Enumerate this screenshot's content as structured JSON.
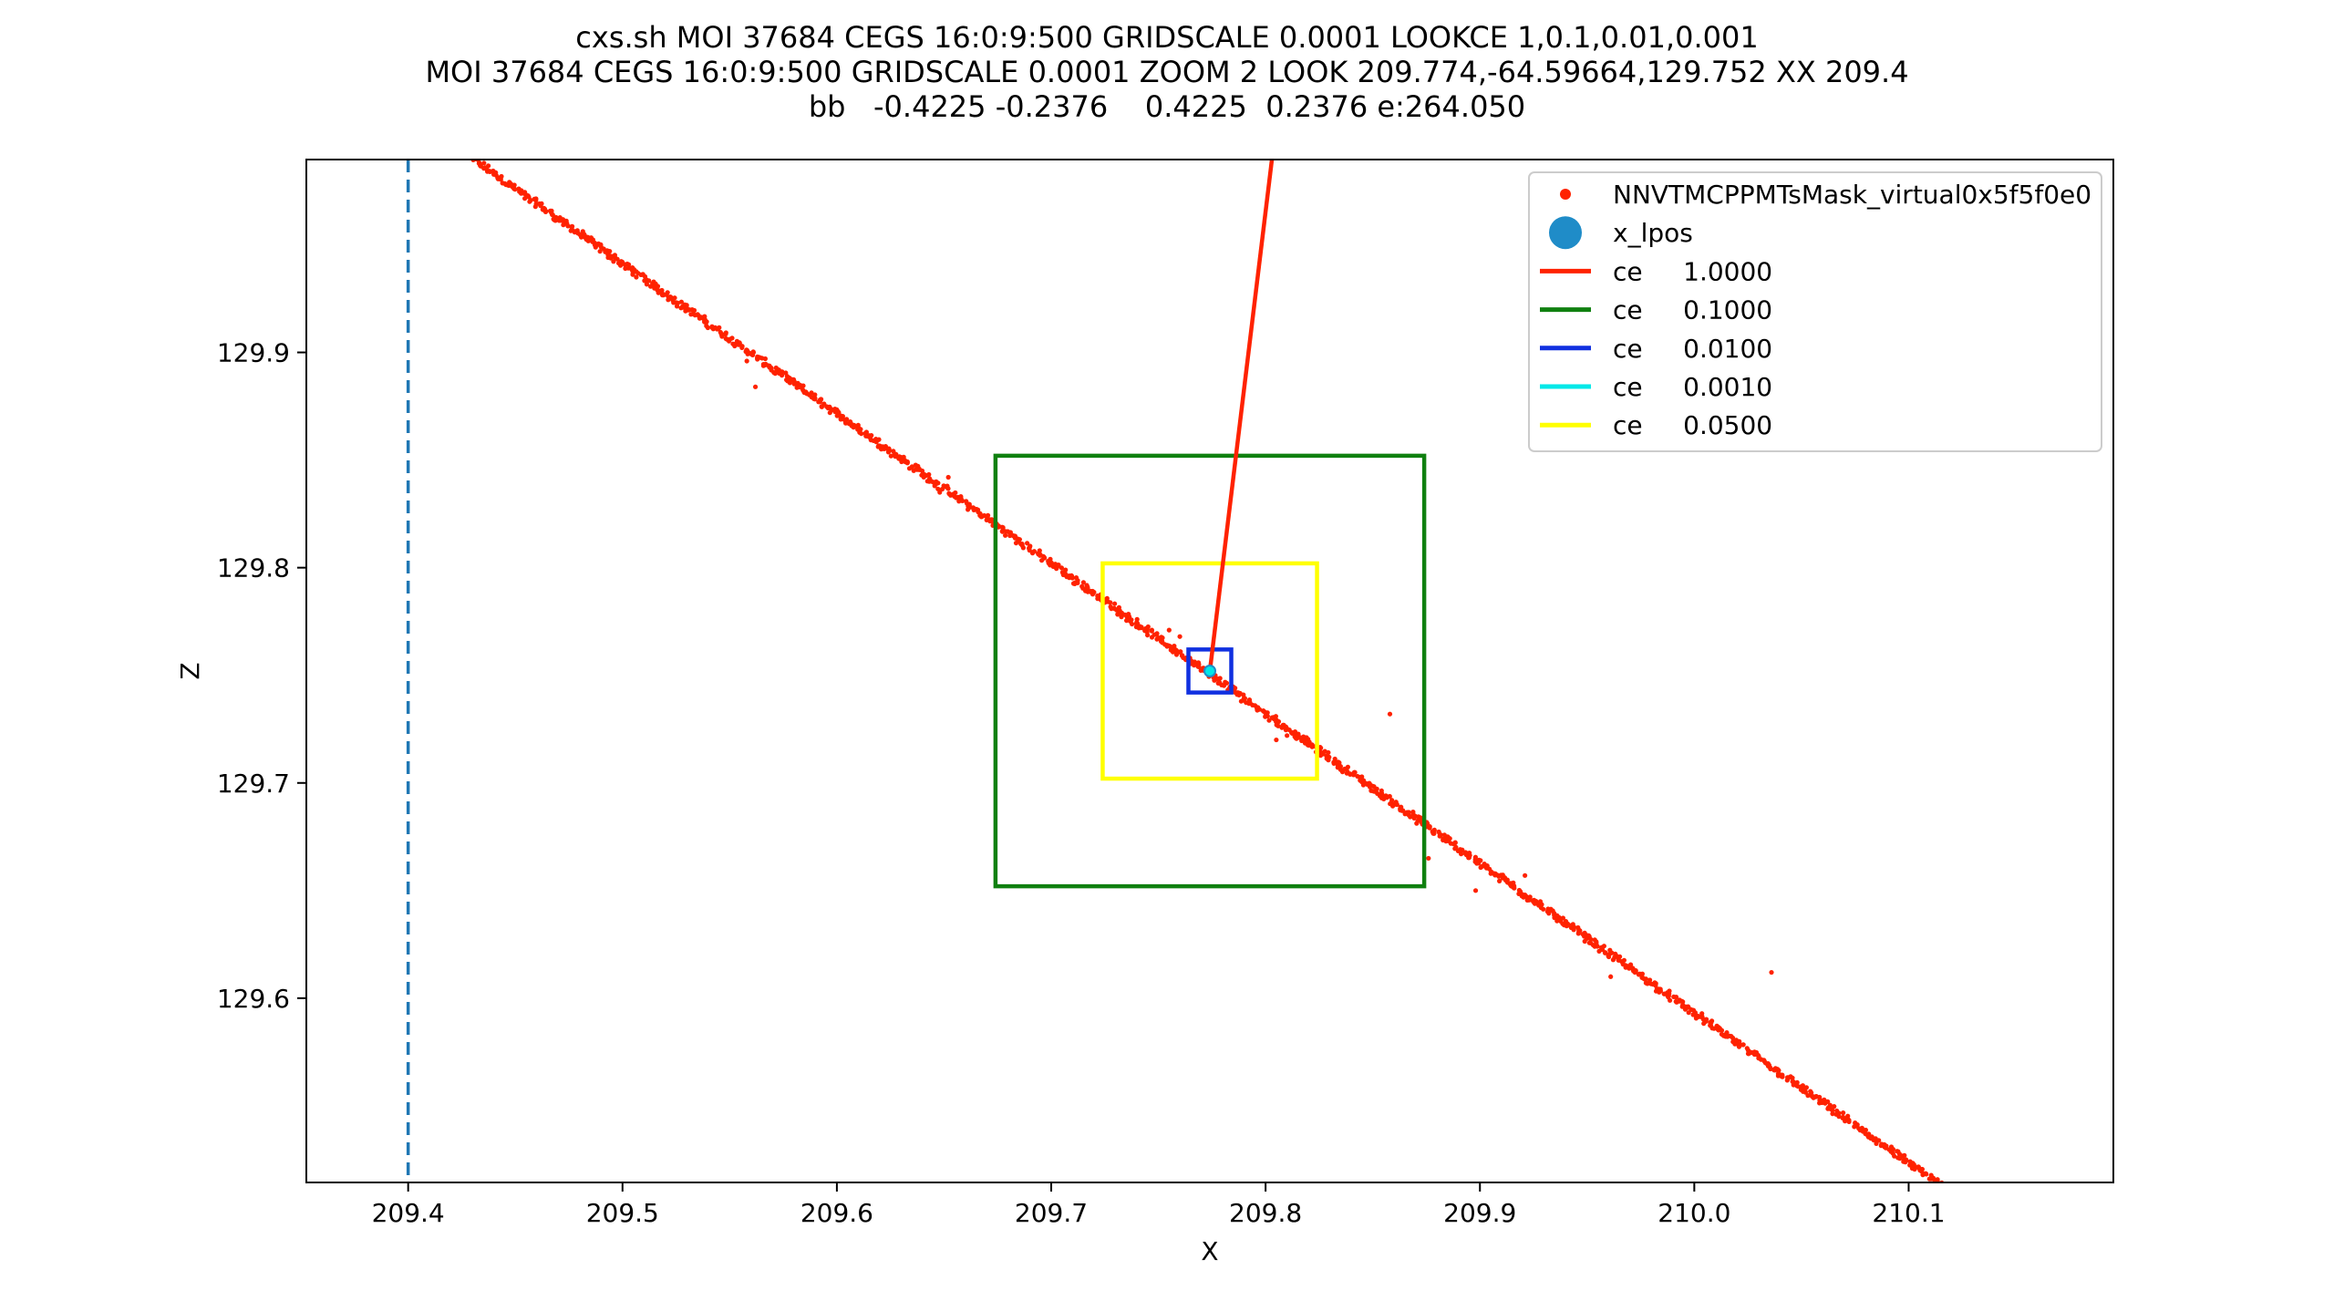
{
  "chart_data": {
    "type": "scatter",
    "title_lines": [
      "cxs.sh MOI 37684 CEGS 16:0:9:500 GRIDSCALE 0.0001 LOOKCE 1,0.1,0.01,0.001",
      "MOI 37684 CEGS 16:0:9:500 GRIDSCALE 0.0001 ZOOM 2 LOOK 209.774,-64.59664,129.752 XX 209.4",
      "bb   -0.4225 -0.2376    0.4225  0.2376 e:264.050"
    ],
    "xlabel": "X",
    "ylabel": "Z",
    "xlim": [
      209.3525,
      210.1955
    ],
    "ylim": [
      129.5144,
      129.9896
    ],
    "xticks": [
      "209.4",
      "209.5",
      "209.6",
      "209.7",
      "209.8",
      "209.9",
      "210.0",
      "210.1"
    ],
    "yticks": [
      "129.6",
      "129.7",
      "129.8",
      "129.9"
    ],
    "grid": false,
    "legend_position": "top-right",
    "colors": {
      "points": "#ff2200",
      "lpos": "#1f8cc8",
      "ce_1": "#ff2200",
      "ce_0_1": "#108010",
      "ce_0_01": "#1030e0",
      "ce_0_001": "#00e8e8",
      "ce_0_05": "#ffff00",
      "xx_line": "#1f77b4"
    },
    "legend": [
      {
        "label": "NNVTMCPPMTsMask_virtual0x5f5f0e0",
        "kind": "point",
        "color": "#ff2200"
      },
      {
        "label": "x_lpos",
        "kind": "bigpoint",
        "color": "#1f8cc8"
      },
      {
        "label": "ce     1.0000",
        "kind": "line",
        "color": "#ff2200"
      },
      {
        "label": "ce     0.1000",
        "kind": "line",
        "color": "#108010"
      },
      {
        "label": "ce     0.0100",
        "kind": "line",
        "color": "#1030e0"
      },
      {
        "label": "ce     0.0010",
        "kind": "line",
        "color": "#00e8e8"
      },
      {
        "label": "ce     0.0500",
        "kind": "line",
        "color": "#ffff00"
      }
    ],
    "series": [
      {
        "name": "NNVTMCPPMTsMask_virtual0x5f5f0e0",
        "kind": "scatter",
        "line_from": [
          209.43,
          129.99
        ],
        "line_to": [
          210.115,
          129.513
        ],
        "stray_points": [
          [
            209.562,
            129.884
          ],
          [
            209.558,
            129.896
          ],
          [
            209.648,
            129.835
          ],
          [
            209.652,
            129.842
          ],
          [
            209.755,
            129.771
          ],
          [
            209.76,
            129.768
          ],
          [
            209.858,
            129.732
          ],
          [
            209.805,
            129.72
          ],
          [
            209.81,
            129.722
          ],
          [
            209.815,
            129.722
          ],
          [
            209.876,
            129.665
          ],
          [
            209.885,
            129.675
          ],
          [
            209.898,
            129.65
          ],
          [
            209.921,
            129.657
          ],
          [
            209.961,
            129.61
          ],
          [
            210.036,
            129.612
          ]
        ]
      },
      {
        "name": "x_lpos",
        "kind": "point",
        "x": 209.774,
        "y": 129.752
      },
      {
        "name": "ce     1.0000",
        "kind": "segment",
        "from": [
          209.774,
          129.752
        ],
        "to": [
          209.803,
          129.99
        ]
      }
    ],
    "ce_boxes": [
      {
        "name": "ce     0.1000",
        "x0": 209.674,
        "x1": 209.874,
        "y0": 129.652,
        "y1": 129.852
      },
      {
        "name": "ce     0.0500",
        "x0": 209.724,
        "x1": 209.824,
        "y0": 129.702,
        "y1": 129.802
      },
      {
        "name": "ce     0.0100",
        "x0": 209.764,
        "x1": 209.784,
        "y0": 129.742,
        "y1": 129.762
      },
      {
        "name": "ce     0.0010",
        "x0": 209.773,
        "x1": 209.775,
        "y0": 129.751,
        "y1": 129.753
      }
    ],
    "xx_line": 209.4
  }
}
